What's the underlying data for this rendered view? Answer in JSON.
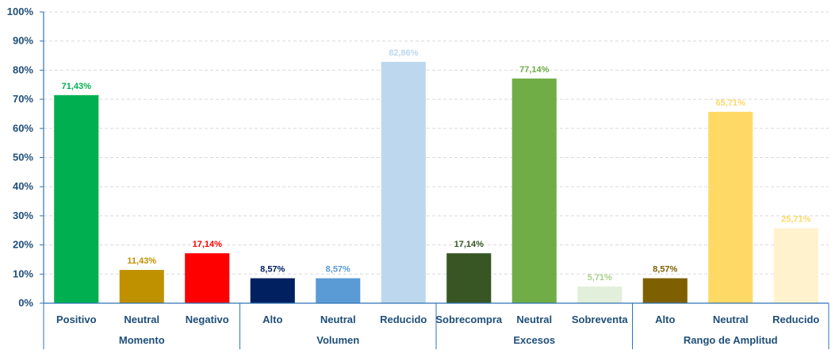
{
  "chart_data": {
    "type": "bar",
    "ylim": [
      0,
      100
    ],
    "yticks": [
      "0%",
      "10%",
      "20%",
      "30%",
      "40%",
      "50%",
      "60%",
      "70%",
      "80%",
      "90%",
      "100%"
    ],
    "grid": true,
    "groups": [
      {
        "name": "Momento",
        "bars": [
          {
            "label": "Positivo",
            "value": 71.43,
            "value_label": "71,43%",
            "color": "#00b050",
            "label_color": "#00b050"
          },
          {
            "label": "Neutral",
            "value": 11.43,
            "value_label": "11,43%",
            "color": "#bf9000",
            "label_color": "#bf9000"
          },
          {
            "label": "Negativo",
            "value": 17.14,
            "value_label": "17,14%",
            "color": "#ff0000",
            "label_color": "#ff0000"
          }
        ]
      },
      {
        "name": "Volumen",
        "bars": [
          {
            "label": "Alto",
            "value": 8.57,
            "value_label": "8,57%",
            "color": "#002060",
            "label_color": "#002060"
          },
          {
            "label": "Neutral",
            "value": 8.57,
            "value_label": "8,57%",
            "color": "#5b9bd5",
            "label_color": "#5b9bd5"
          },
          {
            "label": "Reducido",
            "value": 82.86,
            "value_label": "82,86%",
            "color": "#bdd7ee",
            "label_color": "#bdd7ee"
          }
        ]
      },
      {
        "name": "Excesos",
        "bars": [
          {
            "label": "Sobrecompra",
            "value": 17.14,
            "value_label": "17,14%",
            "color": "#375623",
            "label_color": "#375623"
          },
          {
            "label": "Neutral",
            "value": 77.14,
            "value_label": "77,14%",
            "color": "#70ad47",
            "label_color": "#70ad47"
          },
          {
            "label": "Sobreventa",
            "value": 5.71,
            "value_label": "5,71%",
            "color": "#e2efda",
            "label_color": "#a9d08e"
          }
        ]
      },
      {
        "name": "Rango de Amplitud",
        "bars": [
          {
            "label": "Alto",
            "value": 8.57,
            "value_label": "8,57%",
            "color": "#7f6000",
            "label_color": "#7f6000"
          },
          {
            "label": "Neutral",
            "value": 65.71,
            "value_label": "65,71%",
            "color": "#ffd966",
            "label_color": "#ffd966"
          },
          {
            "label": "Reducido",
            "value": 25.71,
            "value_label": "25,71%",
            "color": "#fff2cc",
            "label_color": "#ffd966"
          }
        ]
      }
    ]
  }
}
